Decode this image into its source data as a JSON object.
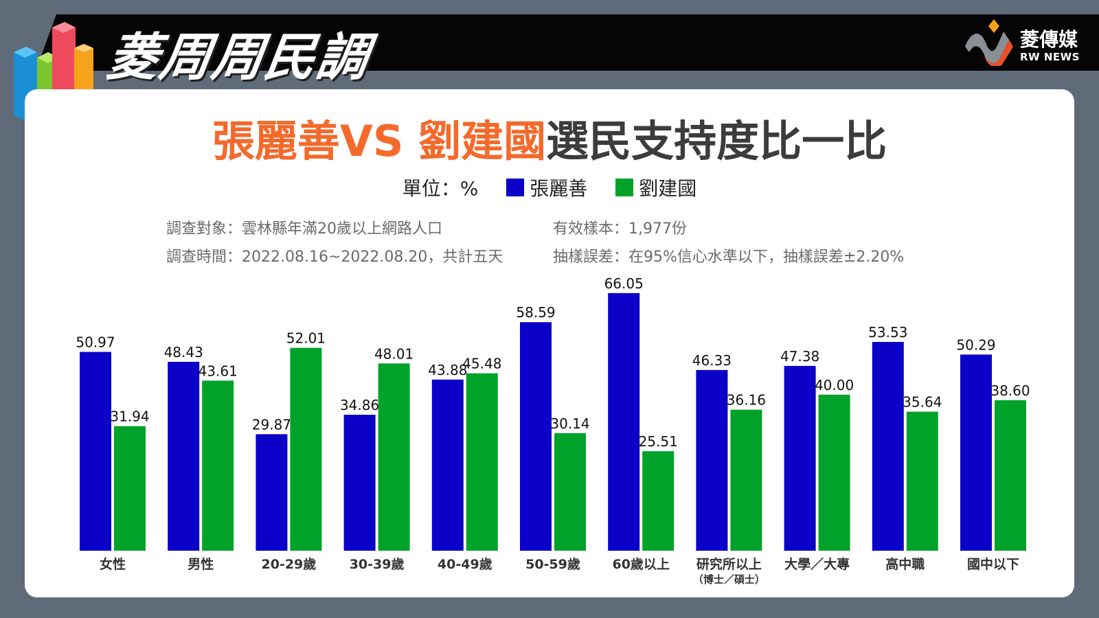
{
  "header": {
    "brand_title": "菱周周民調",
    "logo_cn": "菱傳媒",
    "logo_en": "RW NEWS"
  },
  "headline": {
    "part1": "張麗善VS 劉建國",
    "part2": "選民支持度比一比"
  },
  "legend": {
    "unit": "單位：%",
    "items": [
      {
        "label": "張麗善",
        "color": "#0a00c8"
      },
      {
        "label": "劉建國",
        "color": "#00a22a"
      }
    ]
  },
  "meta": {
    "target": "調查對象：雲林縣年滿20歲以上網路人口",
    "period": "調查時間：2022.08.16~2022.08.20，共計五天",
    "sample": "有效樣本：1,977份",
    "error": "抽樣誤差：在95%信心水準以下，抽樣誤差±2.20%"
  },
  "colors": {
    "accent_orange": "#f46a2c",
    "series_blue": "#0a00c8",
    "series_green": "#00a22a",
    "top_bar": "#050505",
    "background": "#5f6b78"
  },
  "chart_data": {
    "type": "bar",
    "categories": [
      "女性",
      "男性",
      "20-29歲",
      "30-39歲",
      "40-49歲",
      "50-59歲",
      "60歲以上",
      "研究所以上",
      "大學／大專",
      "高中職",
      "國中以下"
    ],
    "category_sublabels": [
      "",
      "",
      "",
      "",
      "",
      "",
      "",
      "（博士／碩士）",
      "",
      "",
      ""
    ],
    "series": [
      {
        "name": "張麗善",
        "color": "#0a00c8",
        "values": [
          50.97,
          48.43,
          29.87,
          34.86,
          43.88,
          58.59,
          66.05,
          46.33,
          47.38,
          53.53,
          50.29
        ],
        "labels": [
          "50.97",
          "48.43",
          "29.87",
          "34.86",
          "43.88",
          "58.59",
          "66.05",
          "46.33",
          "47.38",
          "53.53",
          "50.29"
        ]
      },
      {
        "name": "劉建國",
        "color": "#00a22a",
        "values": [
          31.94,
          43.61,
          52.01,
          48.01,
          45.48,
          30.14,
          25.51,
          36.16,
          40.0,
          35.64,
          38.6
        ],
        "labels": [
          "31.94",
          "43.61",
          "52.01",
          "48.01",
          "45.48",
          "30.14",
          "25.51",
          "36.16",
          "40.00",
          "35.64",
          "38.60"
        ]
      }
    ],
    "ylim": [
      0,
      70
    ],
    "grid": false,
    "legend_position": "top-center"
  }
}
